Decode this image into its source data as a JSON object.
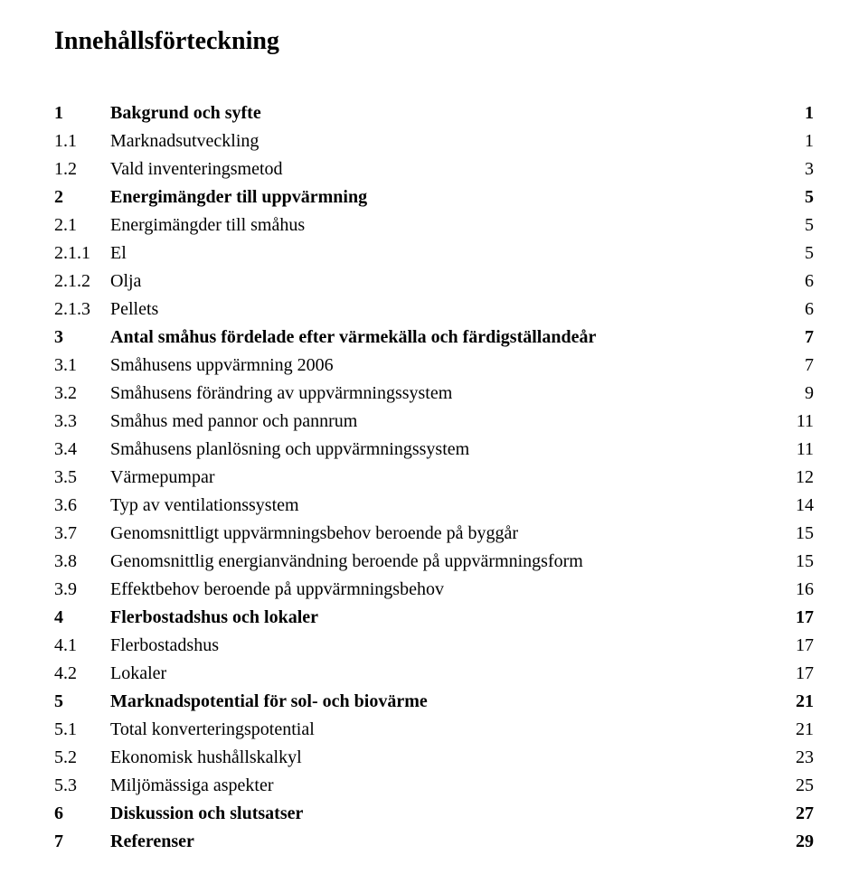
{
  "title": "Innehållsförteckning",
  "entries": [
    {
      "num": "1",
      "label": "Bakgrund och syfte",
      "page": "1",
      "bold": true
    },
    {
      "num": "1.1",
      "label": "Marknadsutveckling",
      "page": "1",
      "bold": false
    },
    {
      "num": "1.2",
      "label": "Vald inventeringsmetod",
      "page": "3",
      "bold": false
    },
    {
      "num": "2",
      "label": "Energimängder till uppvärmning",
      "page": "5",
      "bold": true
    },
    {
      "num": "2.1",
      "label": "Energimängder till småhus",
      "page": "5",
      "bold": false
    },
    {
      "num": "2.1.1",
      "label": "El",
      "page": "5",
      "bold": false
    },
    {
      "num": "2.1.2",
      "label": "Olja",
      "page": "6",
      "bold": false
    },
    {
      "num": "2.1.3",
      "label": "Pellets",
      "page": "6",
      "bold": false
    },
    {
      "num": "3",
      "label": "Antal småhus fördelade efter värmekälla och färdigställandeår",
      "page": "7",
      "bold": true
    },
    {
      "num": "3.1",
      "label": "Småhusens uppvärmning 2006",
      "page": "7",
      "bold": false
    },
    {
      "num": "3.2",
      "label": "Småhusens förändring av uppvärmningssystem",
      "page": "9",
      "bold": false
    },
    {
      "num": "3.3",
      "label": "Småhus med pannor och pannrum",
      "page": "11",
      "bold": false
    },
    {
      "num": "3.4",
      "label": "Småhusens planlösning och uppvärmningssystem",
      "page": "11",
      "bold": false
    },
    {
      "num": "3.5",
      "label": "Värmepumpar",
      "page": "12",
      "bold": false
    },
    {
      "num": "3.6",
      "label": "Typ av ventilationssystem",
      "page": "14",
      "bold": false
    },
    {
      "num": "3.7",
      "label": "Genomsnittligt uppvärmningsbehov beroende på byggår",
      "page": "15",
      "bold": false
    },
    {
      "num": "3.8",
      "label": "Genomsnittlig energianvändning beroende på uppvärmningsform",
      "page": "15",
      "bold": false
    },
    {
      "num": "3.9",
      "label": "Effektbehov beroende på uppvärmningsbehov",
      "page": "16",
      "bold": false
    },
    {
      "num": "4",
      "label": "Flerbostadshus och lokaler",
      "page": "17",
      "bold": true
    },
    {
      "num": "4.1",
      "label": "Flerbostadshus",
      "page": "17",
      "bold": false
    },
    {
      "num": "4.2",
      "label": "Lokaler",
      "page": "17",
      "bold": false
    },
    {
      "num": "5",
      "label": "Marknadspotential för sol- och biovärme",
      "page": "21",
      "bold": true
    },
    {
      "num": "5.1",
      "label": "Total konverteringspotential",
      "page": "21",
      "bold": false
    },
    {
      "num": "5.2",
      "label": "Ekonomisk hushållskalkyl",
      "page": "23",
      "bold": false
    },
    {
      "num": "5.3",
      "label": "Miljömässiga aspekter",
      "page": "25",
      "bold": false
    },
    {
      "num": "6",
      "label": "Diskussion och slutsatser",
      "page": "27",
      "bold": true
    },
    {
      "num": "7",
      "label": "Referenser",
      "page": "29",
      "bold": true
    }
  ],
  "style": {
    "background_color": "#ffffff",
    "text_color": "#000000",
    "title_fontsize": 28,
    "body_fontsize": 20,
    "font_family": "Times New Roman",
    "num_col_width": 62,
    "page_col_width": 40,
    "line_height": 1.55
  }
}
